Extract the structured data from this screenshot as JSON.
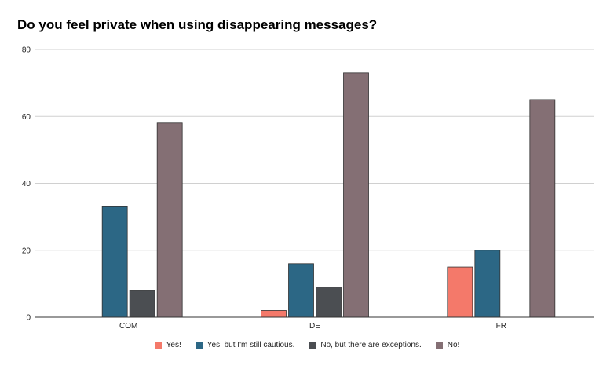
{
  "chart_data": {
    "type": "bar",
    "title": "Do you feel private when using disappearing messages?",
    "xlabel": "",
    "ylabel": "",
    "categories": [
      "COM",
      "DE",
      "FR"
    ],
    "series": [
      {
        "name": "Yes!",
        "color": "#f4796a",
        "values": [
          0,
          2,
          15
        ]
      },
      {
        "name": "Yes, but I'm still cautious.",
        "color": "#2c6785",
        "values": [
          33,
          16,
          20
        ]
      },
      {
        "name": "No, but there are exceptions.",
        "color": "#4b4e52",
        "values": [
          8,
          9,
          0
        ]
      },
      {
        "name": "No!",
        "color": "#846f74",
        "values": [
          58,
          73,
          65
        ]
      }
    ],
    "ylim": [
      0,
      80
    ],
    "yticks": [
      0,
      20,
      40,
      60,
      80
    ],
    "grid": true,
    "legend_position": "bottom"
  }
}
